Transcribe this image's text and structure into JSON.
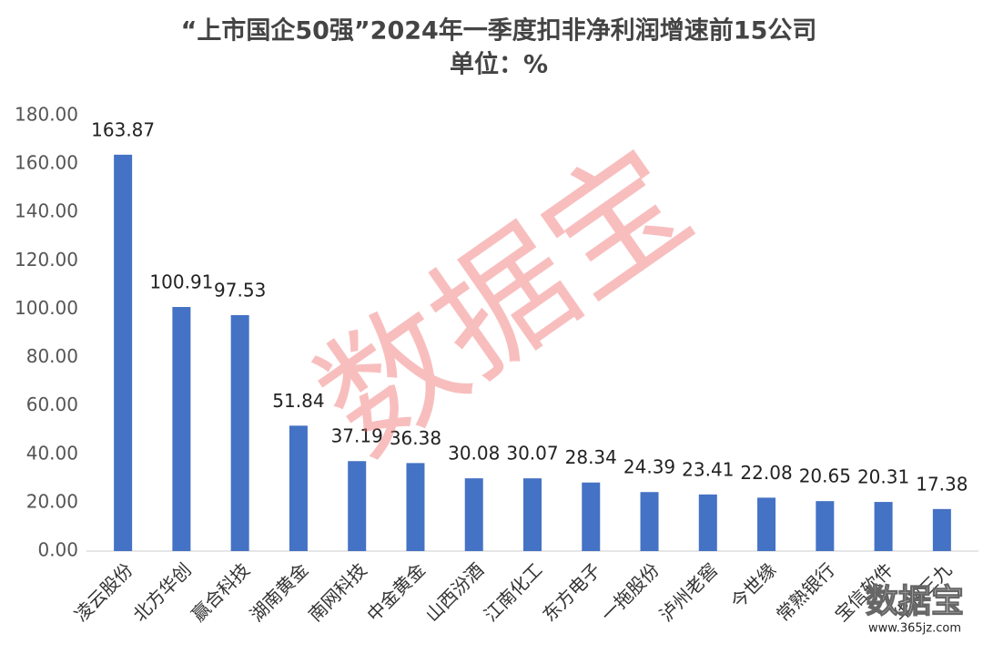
{
  "chart_data": {
    "type": "bar",
    "title": "“上市国企50强”2024年一季度扣非净利润增速前15公司",
    "subtitle": "单位：%",
    "categories": [
      "凌云股份",
      "北方华创",
      "赢合科技",
      "湖南黄金",
      "南网科技",
      "中金黄金",
      "山西汾酒",
      "江南化工",
      "东方电子",
      "一拖股份",
      "泸州老窖",
      "今世缘",
      "常熟银行",
      "宝信软件",
      "华润三九"
    ],
    "values": [
      163.87,
      100.91,
      97.53,
      51.84,
      37.19,
      36.38,
      30.08,
      30.07,
      28.34,
      24.39,
      23.41,
      22.08,
      20.65,
      20.31,
      17.38
    ],
    "color": "#4472c4",
    "ylim": [
      0,
      180
    ],
    "yticks": [
      {
        "value": 0,
        "label": "0.00"
      },
      {
        "value": 20,
        "label": "20.00"
      },
      {
        "value": 40,
        "label": "40.00"
      },
      {
        "value": 60,
        "label": "60.00"
      },
      {
        "value": 80,
        "label": "80.00"
      },
      {
        "value": 100,
        "label": "100.00"
      },
      {
        "value": 120,
        "label": "120.00"
      },
      {
        "value": 140,
        "label": "140.00"
      },
      {
        "value": 160,
        "label": "160.00"
      },
      {
        "value": 180,
        "label": "180.00"
      }
    ],
    "grid": false,
    "watermark": "数据宝",
    "logo": "数据宝",
    "site": "www.365jz.com"
  }
}
